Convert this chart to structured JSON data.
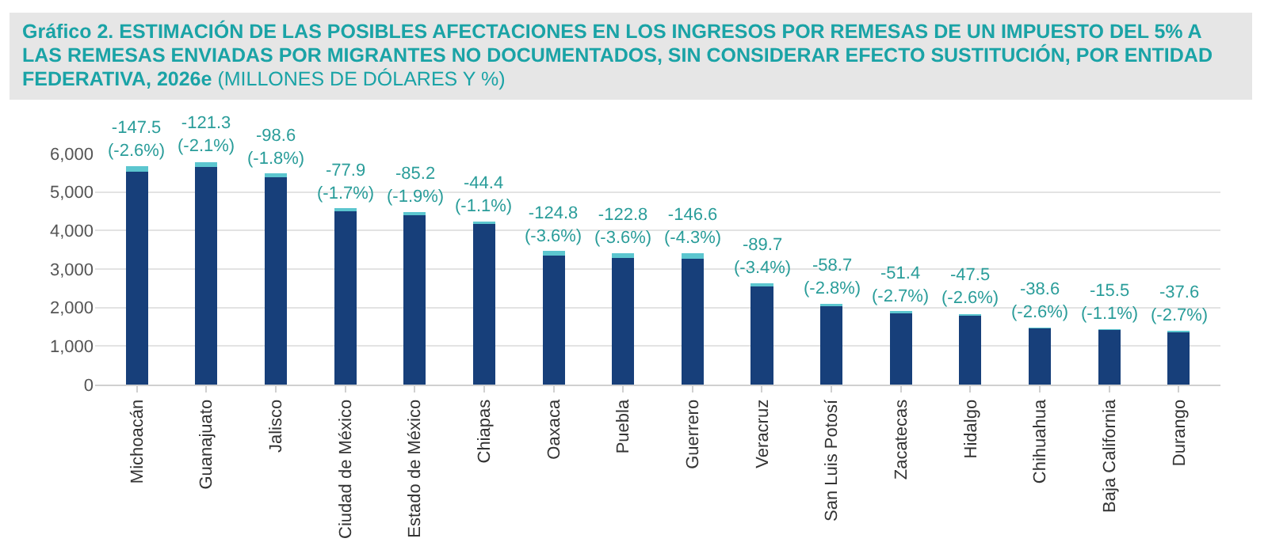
{
  "chart_data": {
    "type": "bar",
    "title": "Gráfico 2. ESTIMACIÓN DE LAS POSIBLES AFECTACIONES EN LOS INGRESOS POR REMESAS DE UN IMPUESTO DEL 5% A LAS REMESAS ENVIADAS POR MIGRANTES NO DOCUMENTADOS, SIN CONSIDERAR EFECTO SUSTITUCIÓN, POR ENTIDAD FEDERATIVA, 2026e",
    "subtitle": "(MILLONES DE DÓLARES Y %)",
    "categories": [
      "Michoacán",
      "Guanajuato",
      "Jalisco",
      "Ciudad de México",
      "Estado de México",
      "Chiapas",
      "Oaxaca",
      "Puebla",
      "Guerrero",
      "Veracruz",
      "San Luis Potosí",
      "Zacatecas",
      "Hidalgo",
      "Chihuahua",
      "Baja California",
      "Durango"
    ],
    "stacked": true,
    "series": [
      {
        "color": "#173f7a",
        "values": [
          5520,
          5660,
          5380,
          4500,
          4400,
          4180,
          3350,
          3290,
          3260,
          2550,
          2040,
          1850,
          1780,
          1450,
          1420,
          1350
        ]
      },
      {
        "color": "#5cc6cf",
        "values": [
          147.5,
          121.3,
          98.6,
          77.9,
          85.2,
          44.4,
          124.8,
          122.8,
          146.6,
          89.7,
          58.7,
          51.4,
          47.5,
          38.6,
          15.5,
          37.6
        ]
      }
    ],
    "annotations": [
      {
        "text": "-147.5\n(-2.6%)",
        "x": "Michoacán",
        "y": 5670
      },
      {
        "text": "-121.3\n(-2.1%)",
        "x": "Guanajuato",
        "y": 5780
      },
      {
        "text": "-98.6\n(-1.8%)",
        "x": "Jalisco",
        "y": 5480
      },
      {
        "text": "-77.9\n(-1.7%)",
        "x": "Ciudad de México",
        "y": 4580
      },
      {
        "text": "-85.2\n(-1.9%)",
        "x": "Estado de México",
        "y": 4490
      },
      {
        "text": "-44.4\n(-1.1%)",
        "x": "Chiapas",
        "y": 4220
      },
      {
        "text": "-124.8\n(-3.6%)",
        "x": "Oaxaca",
        "y": 3470
      },
      {
        "text": "-122.8\n(-3.6%)",
        "x": "Puebla",
        "y": 3410
      },
      {
        "text": "-146.6\n(-4.3%)",
        "x": "Guerrero",
        "y": 3410
      },
      {
        "text": "-89.7\n(-3.4%)",
        "x": "Veracruz",
        "y": 2640
      },
      {
        "text": "-58.7\n(-2.8%)",
        "x": "San Luis Potosí",
        "y": 2100
      },
      {
        "text": "-51.4\n(-2.7%)",
        "x": "Zacatecas",
        "y": 1900
      },
      {
        "text": "-47.5\n(-2.6%)",
        "x": "Hidalgo",
        "y": 1830
      },
      {
        "text": "-38.6\n(-2.6%)",
        "x": "Chihuahua",
        "y": 1490
      },
      {
        "text": "-15.5\n(-1.1%)",
        "x": "Baja California",
        "y": 1440
      },
      {
        "text": "-37.6\n(-2.7%)",
        "x": "Durango",
        "y": 1390
      }
    ],
    "ylim": [
      0,
      6000
    ],
    "yticks": [
      {
        "value": 0,
        "label": "0"
      },
      {
        "value": 1000,
        "label": "1,000"
      },
      {
        "value": 2000,
        "label": "2,000"
      },
      {
        "value": 3000,
        "label": "3,000"
      },
      {
        "value": 4000,
        "label": "4,000"
      },
      {
        "value": 5000,
        "label": "5,000"
      },
      {
        "value": 6000,
        "label": "6,000"
      }
    ],
    "grid": "y",
    "legend": false
  }
}
